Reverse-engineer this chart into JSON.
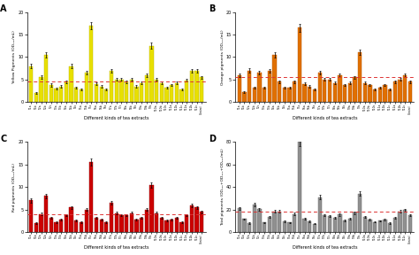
{
  "n_bars": 35,
  "panel_A": {
    "title": "A",
    "ylabel": "Yellow Pigments (OD₁₈₀/mL)",
    "xlabel": "Different kinds of tea extracts",
    "bar_color": "#e8e000",
    "bar_edge": "#b8b000",
    "dashed_line_y": 4.5,
    "dashed_color": "#dd3333",
    "ylim": [
      0,
      20
    ],
    "yticks": [
      0,
      5,
      10,
      15,
      20
    ],
    "values": [
      8.0,
      2.0,
      5.5,
      10.5,
      3.8,
      3.0,
      3.5,
      4.5,
      8.0,
      3.2,
      2.8,
      6.5,
      17.0,
      4.0,
      3.5,
      2.8,
      7.0,
      5.0,
      5.0,
      4.5,
      5.0,
      3.5,
      4.2,
      6.0,
      12.5,
      5.0,
      4.2,
      3.2,
      3.8,
      4.2,
      2.8,
      4.8,
      7.0,
      7.0,
      5.5
    ],
    "errors": [
      0.5,
      0.2,
      0.4,
      0.6,
      0.3,
      0.2,
      0.2,
      0.3,
      0.5,
      0.2,
      0.2,
      0.4,
      0.8,
      0.3,
      0.2,
      0.2,
      0.4,
      0.3,
      0.3,
      0.3,
      0.3,
      0.2,
      0.3,
      0.4,
      0.7,
      0.3,
      0.3,
      0.2,
      0.2,
      0.3,
      0.2,
      0.3,
      0.4,
      0.4,
      0.3
    ]
  },
  "panel_B": {
    "title": "B",
    "ylabel": "Orange pigments (OD₄₀₀/mL)",
    "xlabel": "Different kinds of tea extracts",
    "bar_color": "#e07000",
    "bar_edge": "#b05000",
    "dashed_line_y": 5.5,
    "dashed_color": "#dd3333",
    "ylim": [
      0,
      20
    ],
    "yticks": [
      0,
      5,
      10,
      15,
      20
    ],
    "values": [
      6.0,
      2.2,
      7.0,
      3.2,
      6.5,
      3.2,
      7.0,
      10.5,
      4.5,
      3.2,
      3.2,
      4.5,
      16.5,
      4.0,
      3.5,
      2.8,
      6.5,
      5.0,
      5.0,
      4.2,
      6.0,
      3.8,
      4.2,
      5.5,
      11.0,
      4.2,
      3.8,
      2.8,
      3.2,
      3.8,
      2.8,
      4.5,
      5.0,
      6.0,
      4.5
    ],
    "errors": [
      0.4,
      0.2,
      0.5,
      0.2,
      0.4,
      0.2,
      0.4,
      0.6,
      0.3,
      0.2,
      0.2,
      0.3,
      0.9,
      0.3,
      0.2,
      0.2,
      0.4,
      0.3,
      0.3,
      0.3,
      0.4,
      0.2,
      0.3,
      0.3,
      0.6,
      0.3,
      0.2,
      0.2,
      0.2,
      0.2,
      0.2,
      0.3,
      0.3,
      0.4,
      0.3
    ]
  },
  "panel_C": {
    "title": "C",
    "ylabel": "Red pigments (OD₅₆₀/mL)",
    "xlabel": "Different kinds of tea extracts",
    "bar_color": "#cc0000",
    "bar_edge": "#880000",
    "dashed_line_y": 4.0,
    "dashed_color": "#dd3333",
    "ylim": [
      0,
      20
    ],
    "yticks": [
      0,
      5,
      10,
      15,
      20
    ],
    "values": [
      7.0,
      2.0,
      4.0,
      8.0,
      3.2,
      2.2,
      2.8,
      3.8,
      5.5,
      2.5,
      2.2,
      5.0,
      15.5,
      3.2,
      2.8,
      2.2,
      6.5,
      4.2,
      3.8,
      3.8,
      4.2,
      2.8,
      3.2,
      5.0,
      10.5,
      4.2,
      3.2,
      2.5,
      2.8,
      3.2,
      2.2,
      3.8,
      6.0,
      5.5,
      4.5
    ],
    "errors": [
      0.4,
      0.2,
      0.3,
      0.5,
      0.2,
      0.2,
      0.2,
      0.2,
      0.3,
      0.2,
      0.2,
      0.3,
      0.8,
      0.2,
      0.2,
      0.2,
      0.4,
      0.3,
      0.2,
      0.2,
      0.3,
      0.2,
      0.2,
      0.3,
      0.6,
      0.3,
      0.2,
      0.2,
      0.2,
      0.2,
      0.2,
      0.2,
      0.4,
      0.3,
      0.3
    ]
  },
  "panel_D": {
    "title": "D",
    "ylabel": "Total pigments (OD₁₈₀+OD₄₀₀+OD₅₆₀/mL)",
    "xlabel": "Different kinds of tea extracts",
    "bar_color": "#909090",
    "bar_edge": "#606060",
    "dashed_line_y": 18.0,
    "dashed_color": "#dd3333",
    "ylim": [
      0,
      80
    ],
    "yticks": [
      0,
      20,
      40,
      60,
      80
    ],
    "values": [
      21.0,
      11.5,
      8.0,
      24.5,
      20.5,
      8.5,
      13.5,
      18.5,
      18.5,
      9.5,
      8.5,
      16.0,
      80.0,
      12.0,
      9.5,
      7.5,
      31.0,
      15.0,
      14.5,
      12.5,
      15.5,
      10.5,
      12.0,
      17.0,
      34.0,
      13.5,
      11.0,
      9.0,
      10.0,
      11.0,
      8.0,
      13.0,
      18.5,
      19.5,
      15.0
    ],
    "errors": [
      1.2,
      0.7,
      0.5,
      1.5,
      1.2,
      0.6,
      0.8,
      1.1,
      1.1,
      0.6,
      0.5,
      1.0,
      4.0,
      0.7,
      0.6,
      0.5,
      1.8,
      0.9,
      0.9,
      0.8,
      0.9,
      0.7,
      0.7,
      1.0,
      2.0,
      0.8,
      0.7,
      0.6,
      0.6,
      0.7,
      0.5,
      0.8,
      1.1,
      1.2,
      0.9
    ]
  },
  "x_labels": [
    "T1a",
    "T1b",
    "T2a",
    "T2b",
    "T2c",
    "T3a",
    "T3b",
    "T4a",
    "T4b",
    "T4c",
    "T5a",
    "T5b",
    "T5c",
    "T6a",
    "T6b",
    "T6c",
    "T7a",
    "T7b",
    "T7c",
    "T8a",
    "T8b",
    "T8c",
    "T9a",
    "T9b",
    "T9c",
    "T10a",
    "T10b",
    "T10c",
    "T11a",
    "T11b",
    "T11c",
    "T12a",
    "T12b",
    "T12c",
    "Control"
  ]
}
